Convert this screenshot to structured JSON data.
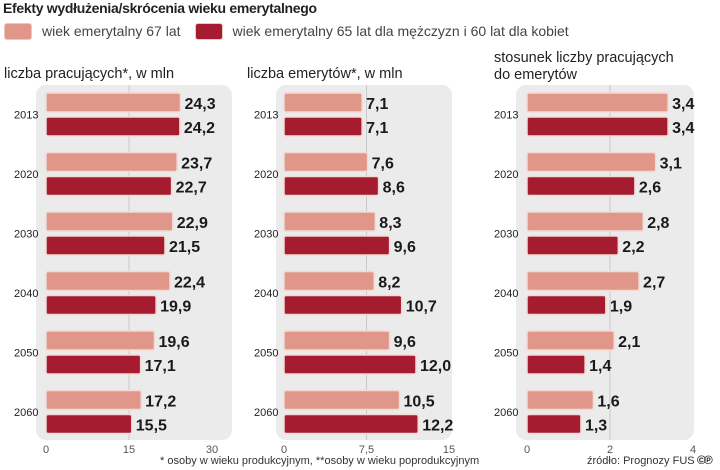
{
  "title": "Efekty wydłużenia/skrócenia wieku emerytalnego",
  "legend": [
    {
      "label": "wiek emerytalny 67 lat",
      "color": "#e0978a"
    },
    {
      "label": "wiek emerytalny 65 lat dla mężczyzn i 60 lat dla kobiet",
      "color": "#a51c30"
    }
  ],
  "footnote": "* osoby w wieku produkcyjnym, **osoby w wieku poprodukcyjnym",
  "source": "źródło: Prognozy FUS",
  "copyright_mark": "©℗",
  "chart_data": [
    {
      "type": "bar",
      "orientation": "horizontal",
      "title": "liczba pracujących*, w mln",
      "categories": [
        "2013",
        "2020",
        "2030",
        "2040",
        "2050",
        "2060"
      ],
      "series": [
        {
          "name": "wiek emerytalny 67 lat",
          "values": [
            24.3,
            23.7,
            22.9,
            22.4,
            19.6,
            17.2
          ],
          "labels": [
            "24,3",
            "23,7",
            "22,9",
            "22,4",
            "19,6",
            "17,2"
          ]
        },
        {
          "name": "wiek emerytalny 65 lat dla mężczyzn i 60 lat dla kobiet",
          "values": [
            24.2,
            22.7,
            21.5,
            19.9,
            17.1,
            15.5
          ],
          "labels": [
            "24,2",
            "22,7",
            "21,5",
            "19,9",
            "17,1",
            "15,5"
          ]
        }
      ],
      "xlim": [
        0,
        30
      ],
      "ticks": [
        0,
        15,
        30
      ],
      "tick_labels": [
        "0",
        "15",
        "30"
      ],
      "grid": true
    },
    {
      "type": "bar",
      "orientation": "horizontal",
      "title": "liczba emerytów*, w mln",
      "categories": [
        "2013",
        "2020",
        "2030",
        "2040",
        "2050",
        "2060"
      ],
      "series": [
        {
          "name": "wiek emerytalny 67 lat",
          "values": [
            7.1,
            7.6,
            8.3,
            8.2,
            9.6,
            10.5
          ],
          "labels": [
            "7,1",
            "7,6",
            "8,3",
            "8,2",
            "9,6",
            "10,5"
          ]
        },
        {
          "name": "wiek emerytalny 65 lat dla mężczyzn i 60 lat dla kobiet",
          "values": [
            7.1,
            8.6,
            9.6,
            10.7,
            12.0,
            12.2
          ],
          "labels": [
            "7,1",
            "8,6",
            "9,6",
            "10,7",
            "12,0",
            "12,2"
          ]
        }
      ],
      "xlim": [
        0,
        15
      ],
      "ticks": [
        0,
        7.5,
        15
      ],
      "tick_labels": [
        "0",
        "7,5",
        "15"
      ],
      "grid": true
    },
    {
      "type": "bar",
      "orientation": "horizontal",
      "title": "stosunek liczby pracujących do emerytów",
      "title_lines": [
        "stosunek liczby pracujących",
        "do emerytów"
      ],
      "categories": [
        "2013",
        "2020",
        "2030",
        "2040",
        "2050",
        "2060"
      ],
      "series": [
        {
          "name": "wiek emerytalny 67 lat",
          "values": [
            3.4,
            3.1,
            2.8,
            2.7,
            2.1,
            1.6
          ],
          "labels": [
            "3,4",
            "3,1",
            "2,8",
            "2,7",
            "2,1",
            "1,6"
          ]
        },
        {
          "name": "wiek emerytalny 65 lat dla mężczyzn i 60 lat dla kobiet",
          "values": [
            3.4,
            2.6,
            2.2,
            1.9,
            1.4,
            1.3
          ],
          "labels": [
            "3,4",
            "2,6",
            "2,2",
            "1,9",
            "1,4",
            "1,3"
          ]
        }
      ],
      "xlim": [
        0,
        4
      ],
      "ticks": [
        0,
        2,
        4
      ],
      "tick_labels": [
        "0",
        "2",
        "4"
      ],
      "grid": true
    }
  ]
}
